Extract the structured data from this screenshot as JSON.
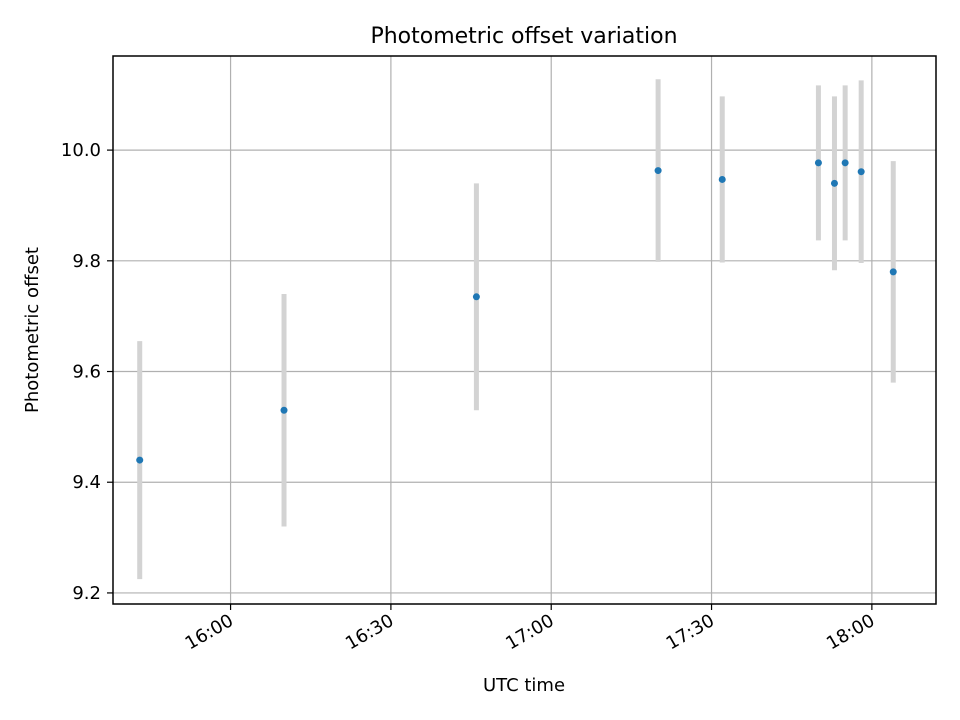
{
  "chart_data": {
    "type": "scatter",
    "title": "Photometric offset variation",
    "xlabel": "UTC time",
    "ylabel": "Photometric offset",
    "x_ticks": [
      "16:00",
      "16:30",
      "17:00",
      "17:30",
      "18:00"
    ],
    "y_ticks": [
      "9.2",
      "9.4",
      "9.6",
      "9.8",
      "10.0"
    ],
    "xlim": [
      "15:38",
      "18:12"
    ],
    "ylim": [
      9.18,
      10.17
    ],
    "grid": true,
    "colors": {
      "point": "#1f77b4",
      "errorbar": "#d3d3d3",
      "grid": "#b0b0b0"
    },
    "points": [
      {
        "x": "15:43",
        "y": 9.44,
        "err": 0.215
      },
      {
        "x": "16:10",
        "y": 9.53,
        "err": 0.21
      },
      {
        "x": "16:46",
        "y": 9.735,
        "err": 0.205
      },
      {
        "x": "17:20",
        "y": 9.963,
        "err": 0.165
      },
      {
        "x": "17:32",
        "y": 9.947,
        "err": 0.15
      },
      {
        "x": "17:50",
        "y": 9.977,
        "err": 0.14
      },
      {
        "x": "17:53",
        "y": 9.94,
        "err": 0.157
      },
      {
        "x": "17:55",
        "y": 9.977,
        "err": 0.14
      },
      {
        "x": "17:58",
        "y": 9.961,
        "err": 0.165
      },
      {
        "x": "18:04",
        "y": 9.78,
        "err": 0.2
      }
    ]
  }
}
